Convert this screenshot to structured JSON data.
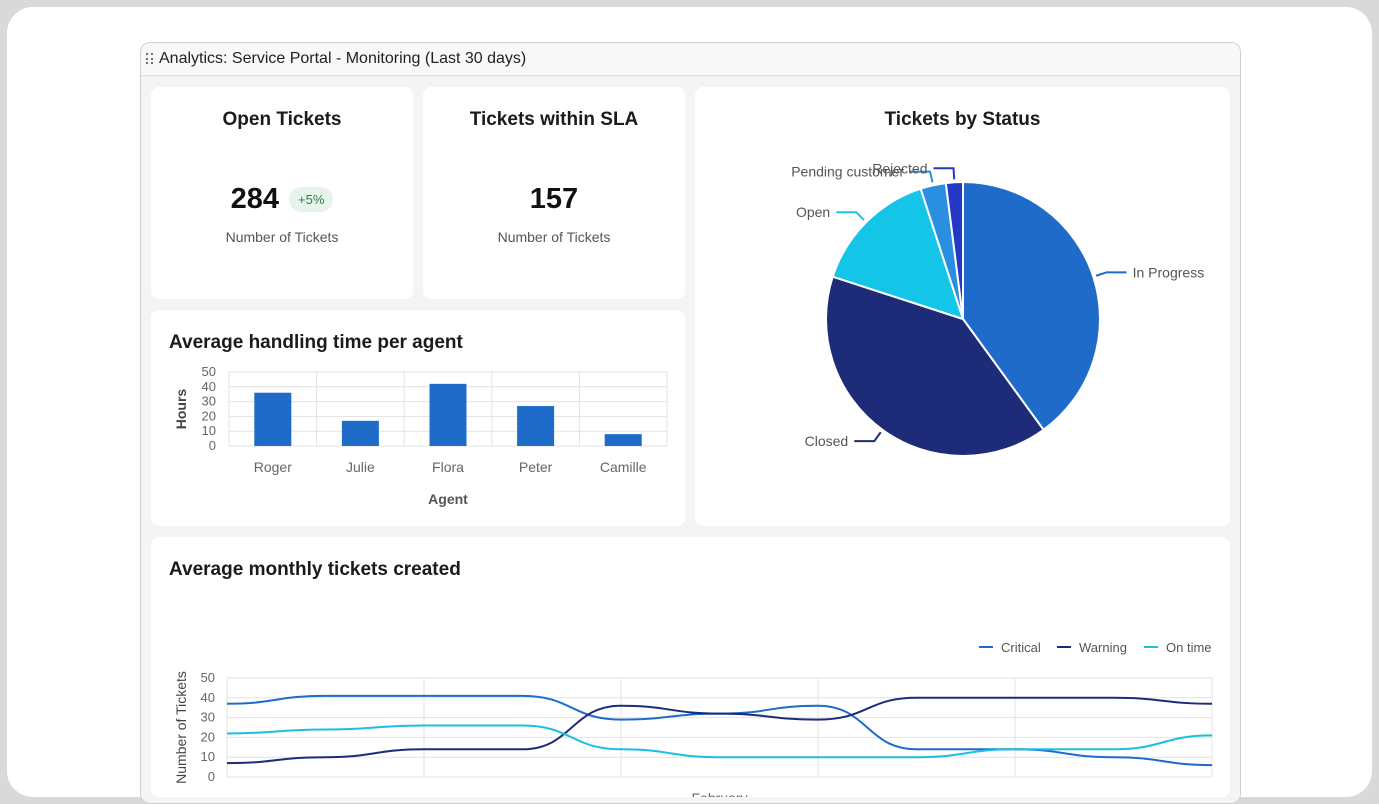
{
  "window": {
    "title": "Analytics: Service Portal - Monitoring (Last 30 days)"
  },
  "kpis": {
    "open": {
      "title": "Open Tickets",
      "value": "284",
      "badge": "+5%",
      "subtitle": "Number of Tickets"
    },
    "sla": {
      "title": "Tickets within SLA",
      "value": "157",
      "subtitle": "Number of Tickets"
    }
  },
  "colors": {
    "critical": "#1f6bc9",
    "warning": "#1e2b78",
    "on_time": "#19c0e4",
    "closed": "#1e2b78",
    "open": "#15c5e8",
    "pending": "#2a8fe0",
    "rejected": "#2338c4"
  },
  "chart_data": [
    {
      "type": "bar",
      "title": "Average handling time per agent",
      "xlabel": "Agent",
      "ylabel": "Hours",
      "categories": [
        "Roger",
        "Julie",
        "Flora",
        "Peter",
        "Camille"
      ],
      "values": [
        36,
        17,
        42,
        27,
        8
      ],
      "ylim": [
        0,
        50
      ],
      "yticks": [
        "0",
        "10",
        "20",
        "30",
        "40",
        "50"
      ],
      "grid": true
    },
    {
      "type": "pie",
      "title": "Tickets by Status",
      "labels": [
        "In Progress",
        "Closed",
        "Open",
        "Pending customer",
        "Rejected"
      ],
      "values": [
        40,
        40,
        15,
        3,
        2
      ]
    },
    {
      "type": "line",
      "title": "Average monthly tickets created",
      "xlabel": "February",
      "ylabel": "Number of Tickets",
      "ylim": [
        0,
        50
      ],
      "yticks": [
        "0",
        "10",
        "20",
        "30",
        "40",
        "50"
      ],
      "legend": "top-right",
      "grid": true,
      "series": [
        {
          "name": "Critical",
          "values": [
            37,
            41,
            41,
            41,
            29,
            32,
            36,
            14,
            14,
            10,
            6
          ]
        },
        {
          "name": "Warning",
          "values": [
            7,
            10,
            14,
            14,
            36,
            32,
            29,
            40,
            40,
            40,
            37
          ]
        },
        {
          "name": "On time",
          "values": [
            22,
            24,
            26,
            26,
            14,
            10,
            10,
            10,
            14,
            14,
            21
          ]
        }
      ]
    }
  ]
}
